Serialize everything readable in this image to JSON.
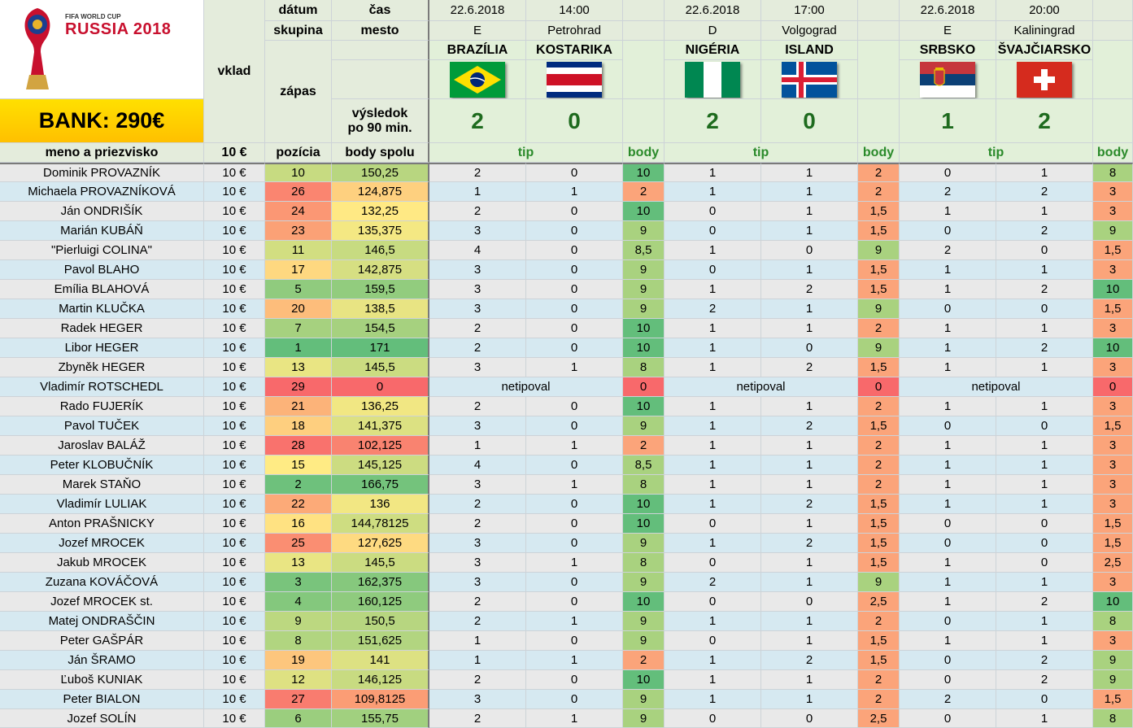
{
  "logo": {
    "line1": "FIFA WORLD CUP",
    "line2": "RUSSIA 2018"
  },
  "bank": "BANK: 290€",
  "headers": {
    "datum": "dátum",
    "cas": "čas",
    "skupina": "skupina",
    "mesto": "mesto",
    "vklad": "vklad",
    "zapas": "zápas",
    "vysledok1": "výsledok",
    "vysledok2": "po 90 min.",
    "meno": "meno a priezvisko",
    "vklad_amount": "10 €",
    "pozicia": "pozícia",
    "body_spolu": "body spolu",
    "tip": "tip",
    "body": "body"
  },
  "matches": [
    {
      "date": "22.6.2018",
      "time": "14:00",
      "group": "E",
      "city": "Petrohrad",
      "home": "BRAZÍLIA",
      "away": "KOSTARIKA",
      "home_flag": "brazil-flag",
      "away_flag": "costa-rica-flag",
      "home_score": "2",
      "away_score": "0"
    },
    {
      "date": "22.6.2018",
      "time": "17:00",
      "group": "D",
      "city": "Volgograd",
      "home": "NIGÉRIA",
      "away": "ISLAND",
      "home_flag": "nigeria-flag",
      "away_flag": "iceland-flag",
      "home_score": "2",
      "away_score": "0"
    },
    {
      "date": "22.6.2018",
      "time": "20:00",
      "group": "E",
      "city": "Kaliningrad",
      "home": "SRBSKO",
      "away": "ŠVAJČIARSKO",
      "home_flag": "serbia-flag",
      "away_flag": "switzerland-flag",
      "home_score": "1",
      "away_score": "2"
    }
  ],
  "no_tip_text": "netipoval",
  "colors": {
    "green": "#63be7b",
    "light_green": "#a9d27f",
    "yellow": "#ffeb84",
    "orange": "#fba47a",
    "red": "#f8696b"
  },
  "rows": [
    {
      "name": "Dominik PROVAZNÍK",
      "vklad": "10 €",
      "pos": "10",
      "total": "150,25",
      "tips": [
        [
          "2",
          "0",
          "10"
        ],
        [
          "1",
          "1",
          "2"
        ],
        [
          "0",
          "1",
          "8"
        ]
      ]
    },
    {
      "name": "Michaela PROVAZNÍKOVÁ",
      "vklad": "10 €",
      "pos": "26",
      "total": "124,875",
      "tips": [
        [
          "1",
          "1",
          "2"
        ],
        [
          "1",
          "1",
          "2"
        ],
        [
          "2",
          "2",
          "3"
        ]
      ]
    },
    {
      "name": "Ján ONDRIŠÍK",
      "vklad": "10 €",
      "pos": "24",
      "total": "132,25",
      "tips": [
        [
          "2",
          "0",
          "10"
        ],
        [
          "0",
          "1",
          "1,5"
        ],
        [
          "1",
          "1",
          "3"
        ]
      ]
    },
    {
      "name": "Marián KUBÁŇ",
      "vklad": "10 €",
      "pos": "23",
      "total": "135,375",
      "tips": [
        [
          "3",
          "0",
          "9"
        ],
        [
          "0",
          "1",
          "1,5"
        ],
        [
          "0",
          "2",
          "9"
        ]
      ]
    },
    {
      "name": "\"Pierluigi COLINA\"",
      "vklad": "10 €",
      "pos": "11",
      "total": "146,5",
      "tips": [
        [
          "4",
          "0",
          "8,5"
        ],
        [
          "1",
          "0",
          "9"
        ],
        [
          "2",
          "0",
          "1,5"
        ]
      ]
    },
    {
      "name": "Pavol BLAHO",
      "vklad": "10 €",
      "pos": "17",
      "total": "142,875",
      "tips": [
        [
          "3",
          "0",
          "9"
        ],
        [
          "0",
          "1",
          "1,5"
        ],
        [
          "1",
          "1",
          "3"
        ]
      ]
    },
    {
      "name": "Emília BLAHOVÁ",
      "vklad": "10 €",
      "pos": "5",
      "total": "159,5",
      "tips": [
        [
          "3",
          "0",
          "9"
        ],
        [
          "1",
          "2",
          "1,5"
        ],
        [
          "1",
          "2",
          "10"
        ]
      ]
    },
    {
      "name": "Martin KLUČKA",
      "vklad": "10 €",
      "pos": "20",
      "total": "138,5",
      "tips": [
        [
          "3",
          "0",
          "9"
        ],
        [
          "2",
          "1",
          "9"
        ],
        [
          "0",
          "0",
          "1,5"
        ]
      ]
    },
    {
      "name": "Radek HEGER",
      "vklad": "10 €",
      "pos": "7",
      "total": "154,5",
      "tips": [
        [
          "2",
          "0",
          "10"
        ],
        [
          "1",
          "1",
          "2"
        ],
        [
          "1",
          "1",
          "3"
        ]
      ]
    },
    {
      "name": "Libor HEGER",
      "vklad": "10 €",
      "pos": "1",
      "total": "171",
      "tips": [
        [
          "2",
          "0",
          "10"
        ],
        [
          "1",
          "0",
          "9"
        ],
        [
          "1",
          "2",
          "10"
        ]
      ]
    },
    {
      "name": "Zbyněk HEGER",
      "vklad": "10 €",
      "pos": "13",
      "total": "145,5",
      "tips": [
        [
          "3",
          "1",
          "8"
        ],
        [
          "1",
          "2",
          "1,5"
        ],
        [
          "1",
          "1",
          "3"
        ]
      ]
    },
    {
      "name": "Vladimír ROTSCHEDL",
      "vklad": "10 €",
      "pos": "29",
      "total": "0",
      "tips": [
        [
          "netipoval",
          "",
          "0"
        ],
        [
          "netipoval",
          "",
          "0"
        ],
        [
          "netipoval",
          "",
          "0"
        ]
      ]
    },
    {
      "name": "Rado FUJERÍK",
      "vklad": "10 €",
      "pos": "21",
      "total": "136,25",
      "tips": [
        [
          "2",
          "0",
          "10"
        ],
        [
          "1",
          "1",
          "2"
        ],
        [
          "1",
          "1",
          "3"
        ]
      ]
    },
    {
      "name": "Pavol TUČEK",
      "vklad": "10 €",
      "pos": "18",
      "total": "141,375",
      "tips": [
        [
          "3",
          "0",
          "9"
        ],
        [
          "1",
          "2",
          "1,5"
        ],
        [
          "0",
          "0",
          "1,5"
        ]
      ]
    },
    {
      "name": "Jaroslav BALÁŽ",
      "vklad": "10 €",
      "pos": "28",
      "total": "102,125",
      "tips": [
        [
          "1",
          "1",
          "2"
        ],
        [
          "1",
          "1",
          "2"
        ],
        [
          "1",
          "1",
          "3"
        ]
      ]
    },
    {
      "name": "Peter KLOBUČNÍK",
      "vklad": "10 €",
      "pos": "15",
      "total": "145,125",
      "tips": [
        [
          "4",
          "0",
          "8,5"
        ],
        [
          "1",
          "1",
          "2"
        ],
        [
          "1",
          "1",
          "3"
        ]
      ]
    },
    {
      "name": "Marek STAŇO",
      "vklad": "10 €",
      "pos": "2",
      "total": "166,75",
      "tips": [
        [
          "3",
          "1",
          "8"
        ],
        [
          "1",
          "1",
          "2"
        ],
        [
          "1",
          "1",
          "3"
        ]
      ]
    },
    {
      "name": "Vladimír LULIAK",
      "vklad": "10 €",
      "pos": "22",
      "total": "136",
      "tips": [
        [
          "2",
          "0",
          "10"
        ],
        [
          "1",
          "2",
          "1,5"
        ],
        [
          "1",
          "1",
          "3"
        ]
      ]
    },
    {
      "name": "Anton PRAŠNICKY",
      "vklad": "10 €",
      "pos": "16",
      "total": "144,78125",
      "tips": [
        [
          "2",
          "0",
          "10"
        ],
        [
          "0",
          "1",
          "1,5"
        ],
        [
          "0",
          "0",
          "1,5"
        ]
      ]
    },
    {
      "name": "Jozef MROCEK",
      "vklad": "10 €",
      "pos": "25",
      "total": "127,625",
      "tips": [
        [
          "3",
          "0",
          "9"
        ],
        [
          "1",
          "2",
          "1,5"
        ],
        [
          "0",
          "0",
          "1,5"
        ]
      ]
    },
    {
      "name": "Jakub MROCEK",
      "vklad": "10 €",
      "pos": "13",
      "total": "145,5",
      "tips": [
        [
          "3",
          "1",
          "8"
        ],
        [
          "0",
          "1",
          "1,5"
        ],
        [
          "1",
          "0",
          "2,5"
        ]
      ]
    },
    {
      "name": "Zuzana KOVÁČOVÁ",
      "vklad": "10 €",
      "pos": "3",
      "total": "162,375",
      "tips": [
        [
          "3",
          "0",
          "9"
        ],
        [
          "2",
          "1",
          "9"
        ],
        [
          "1",
          "1",
          "3"
        ]
      ]
    },
    {
      "name": "Jozef MROCEK st.",
      "vklad": "10 €",
      "pos": "4",
      "total": "160,125",
      "tips": [
        [
          "2",
          "0",
          "10"
        ],
        [
          "0",
          "0",
          "2,5"
        ],
        [
          "1",
          "2",
          "10"
        ]
      ]
    },
    {
      "name": "Matej ONDRAŠČIN",
      "vklad": "10 €",
      "pos": "9",
      "total": "150,5",
      "tips": [
        [
          "2",
          "1",
          "9"
        ],
        [
          "1",
          "1",
          "2"
        ],
        [
          "0",
          "1",
          "8"
        ]
      ]
    },
    {
      "name": "Peter GAŠPÁR",
      "vklad": "10 €",
      "pos": "8",
      "total": "151,625",
      "tips": [
        [
          "1",
          "0",
          "9"
        ],
        [
          "0",
          "1",
          "1,5"
        ],
        [
          "1",
          "1",
          "3"
        ]
      ]
    },
    {
      "name": "Ján ŠRAMO",
      "vklad": "10 €",
      "pos": "19",
      "total": "141",
      "tips": [
        [
          "1",
          "1",
          "2"
        ],
        [
          "1",
          "2",
          "1,5"
        ],
        [
          "0",
          "2",
          "9"
        ]
      ]
    },
    {
      "name": "Ľuboš KUNIAK",
      "vklad": "10 €",
      "pos": "12",
      "total": "146,125",
      "tips": [
        [
          "2",
          "0",
          "10"
        ],
        [
          "1",
          "1",
          "2"
        ],
        [
          "0",
          "2",
          "9"
        ]
      ]
    },
    {
      "name": "Peter BIALON",
      "vklad": "10 €",
      "pos": "27",
      "total": "109,8125",
      "tips": [
        [
          "3",
          "0",
          "9"
        ],
        [
          "1",
          "1",
          "2"
        ],
        [
          "2",
          "0",
          "1,5"
        ]
      ]
    },
    {
      "name": "Jozef SOLÍN",
      "vklad": "10 €",
      "pos": "6",
      "total": "155,75",
      "tips": [
        [
          "2",
          "1",
          "9"
        ],
        [
          "0",
          "0",
          "2,5"
        ],
        [
          "0",
          "1",
          "8"
        ]
      ]
    }
  ]
}
